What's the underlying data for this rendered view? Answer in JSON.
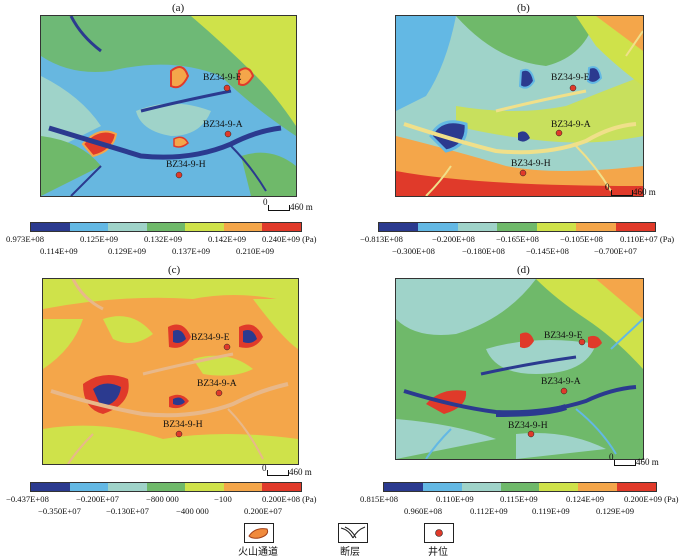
{
  "panels": [
    {
      "id": "a",
      "label": "(a)",
      "wells": [
        "BZ34-9-E",
        "BZ34-9-A",
        "BZ34-9-H"
      ],
      "scale": {
        "zero": "0",
        "dist": "460 m"
      },
      "colors": [
        "#2b3a8f",
        "#63b8e4",
        "#9fd3c9",
        "#6fb96a",
        "#cfe24a",
        "#f4a64a",
        "#e03a2a"
      ],
      "ticks_top": [
        "0.973E+08",
        "0.125E+09",
        "0.132E+09",
        "0.142E+09",
        "0.240E+09 (Pa)"
      ],
      "ticks_bottom": [
        "0.114E+09",
        "0.129E+09",
        "0.137E+09",
        "0.210E+09"
      ]
    },
    {
      "id": "b",
      "label": "(b)",
      "wells": [
        "BZ34-9-E",
        "BZ34-9-A",
        "BZ34-9-H"
      ],
      "scale": {
        "zero": "0",
        "dist": "460 m"
      },
      "colors": [
        "#2b3a8f",
        "#63b8e4",
        "#9fd3c9",
        "#6fb96a",
        "#cfe24a",
        "#f4a64a",
        "#e03a2a"
      ],
      "ticks_top": [
        "−0.813E+08",
        "−0.200E+08",
        "−0.165E+08",
        "−0.105E+08",
        "0.110E+07 (Pa)"
      ],
      "ticks_bottom": [
        "−0.300E+08",
        "−0.180E+08",
        "−0.145E+08",
        "−0.700E+07"
      ]
    },
    {
      "id": "c",
      "label": "(c)",
      "wells": [
        "BZ34-9-E",
        "BZ34-9-A",
        "BZ34-9-H"
      ],
      "scale": {
        "zero": "0",
        "dist": "460 m"
      },
      "colors": [
        "#2b3a8f",
        "#63b8e4",
        "#9fd3c9",
        "#6fb96a",
        "#cfe24a",
        "#f4a64a",
        "#e03a2a"
      ],
      "ticks_top": [
        "−0.437E+08",
        "−0.200E+07",
        "−800 000",
        "−100",
        "0.200E+08 (Pa)"
      ],
      "ticks_bottom": [
        "−0.350E+07",
        "−0.130E+07",
        "−400 000",
        "0.200E+07"
      ]
    },
    {
      "id": "d",
      "label": "(d)",
      "wells": [
        "BZ34-9-E",
        "BZ34-9-A",
        "BZ34-9-H"
      ],
      "scale": {
        "zero": "0",
        "dist": "460 m"
      },
      "colors": [
        "#2b3a8f",
        "#63b8e4",
        "#9fd3c9",
        "#6fb96a",
        "#cfe24a",
        "#f4a64a",
        "#e03a2a"
      ],
      "ticks_top": [
        "0.815E+08",
        "0.110E+09",
        "0.115E+09",
        "0.124E+09",
        "0.200E+09 (Pa)"
      ],
      "ticks_bottom": [
        "0.960E+08",
        "0.112E+09",
        "0.119E+09",
        "0.129E+09"
      ]
    }
  ],
  "legend": {
    "volcanic": "火山通道",
    "fault": "断层",
    "well": "井位"
  }
}
